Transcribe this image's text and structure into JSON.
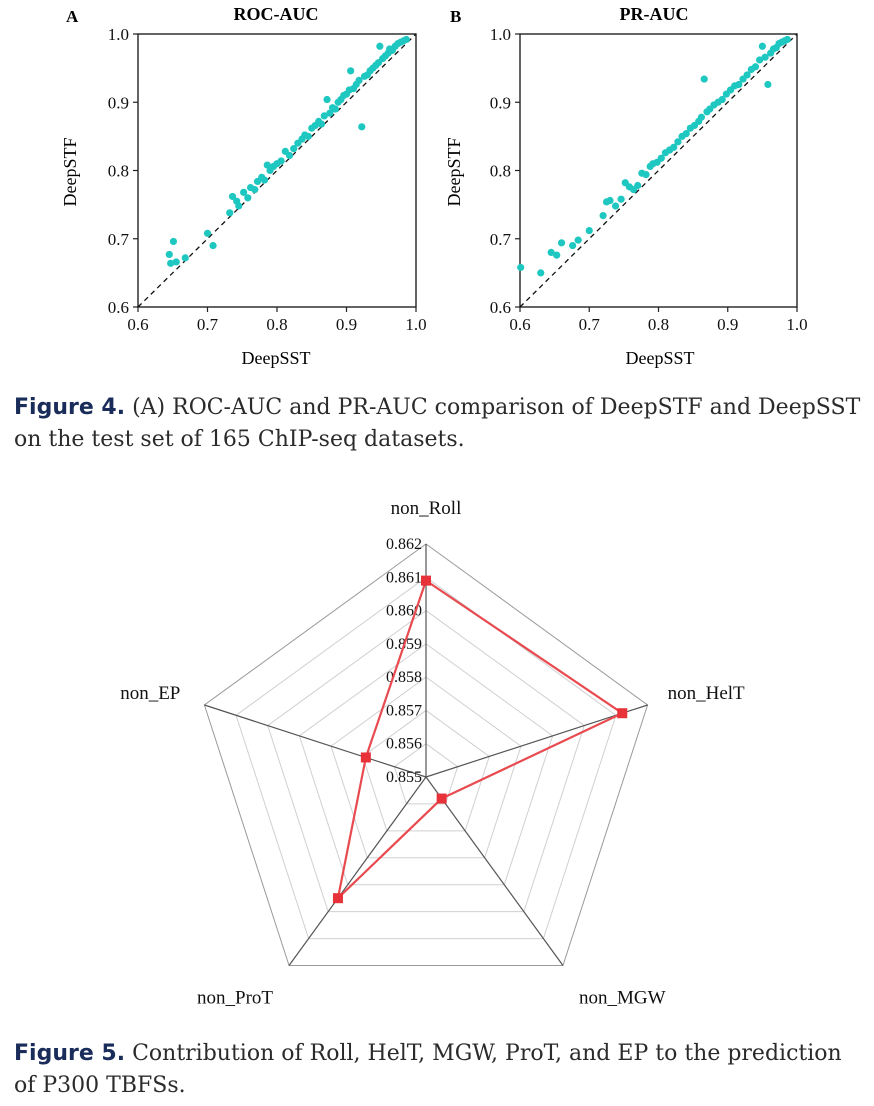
{
  "captions": {
    "fig4_label": "Figure 4.",
    "fig4_text": "(A) ROC-AUC and PR-AUC comparison of DeepSTF and DeepSST on the test set of 165 ChIP-seq datasets.",
    "fig5_label": "Figure 5.",
    "fig5_text": "Contribution of Roll, HelT, MGW, ProT, and EP to the prediction of P300 TBFSs."
  },
  "colors": {
    "scatter_points": "#1fc7c1",
    "radar_line": "#e84a4f",
    "radar_marker": "#e8323a",
    "grid": "#d0d0d0",
    "spoke": "#555555"
  },
  "chart_data": [
    {
      "type": "scatter",
      "panel_label": "A",
      "title": "ROC-AUC",
      "xlabel": "DeepSST",
      "ylabel": "DeepSTF",
      "xlim": [
        0.6,
        1.0
      ],
      "ylim": [
        0.6,
        1.0
      ],
      "xticks": [
        "0.6",
        "0.7",
        "0.8",
        "0.9",
        "1.0"
      ],
      "yticks": [
        "0.6",
        "0.7",
        "0.8",
        "0.9",
        "1.0"
      ],
      "reference_line": "y = x (dashed)",
      "points": [
        [
          0.645,
          0.677
        ],
        [
          0.651,
          0.696
        ],
        [
          0.647,
          0.664
        ],
        [
          0.655,
          0.666
        ],
        [
          0.668,
          0.672
        ],
        [
          0.7,
          0.708
        ],
        [
          0.708,
          0.69
        ],
        [
          0.732,
          0.738
        ],
        [
          0.736,
          0.762
        ],
        [
          0.742,
          0.755
        ],
        [
          0.745,
          0.748
        ],
        [
          0.752,
          0.768
        ],
        [
          0.758,
          0.76
        ],
        [
          0.762,
          0.775
        ],
        [
          0.768,
          0.772
        ],
        [
          0.772,
          0.784
        ],
        [
          0.778,
          0.79
        ],
        [
          0.782,
          0.786
        ],
        [
          0.786,
          0.808
        ],
        [
          0.79,
          0.8
        ],
        [
          0.795,
          0.806
        ],
        [
          0.8,
          0.81
        ],
        [
          0.806,
          0.814
        ],
        [
          0.812,
          0.828
        ],
        [
          0.818,
          0.822
        ],
        [
          0.824,
          0.832
        ],
        [
          0.83,
          0.84
        ],
        [
          0.836,
          0.846
        ],
        [
          0.84,
          0.852
        ],
        [
          0.845,
          0.85
        ],
        [
          0.85,
          0.862
        ],
        [
          0.855,
          0.866
        ],
        [
          0.86,
          0.872
        ],
        [
          0.864,
          0.868
        ],
        [
          0.868,
          0.88
        ],
        [
          0.872,
          0.904
        ],
        [
          0.876,
          0.884
        ],
        [
          0.88,
          0.892
        ],
        [
          0.884,
          0.89
        ],
        [
          0.888,
          0.9
        ],
        [
          0.892,
          0.904
        ],
        [
          0.896,
          0.91
        ],
        [
          0.9,
          0.912
        ],
        [
          0.904,
          0.918
        ],
        [
          0.906,
          0.946
        ],
        [
          0.91,
          0.92
        ],
        [
          0.914,
          0.926
        ],
        [
          0.918,
          0.932
        ],
        [
          0.922,
          0.864
        ],
        [
          0.926,
          0.938
        ],
        [
          0.93,
          0.94
        ],
        [
          0.934,
          0.946
        ],
        [
          0.938,
          0.95
        ],
        [
          0.942,
          0.954
        ],
        [
          0.946,
          0.958
        ],
        [
          0.948,
          0.982
        ],
        [
          0.952,
          0.964
        ],
        [
          0.956,
          0.968
        ],
        [
          0.96,
          0.972
        ],
        [
          0.962,
          0.978
        ],
        [
          0.966,
          0.976
        ],
        [
          0.97,
          0.982
        ],
        [
          0.974,
          0.986
        ],
        [
          0.978,
          0.988
        ],
        [
          0.982,
          0.99
        ],
        [
          0.986,
          0.992
        ]
      ]
    },
    {
      "type": "scatter",
      "panel_label": "B",
      "title": "PR-AUC",
      "xlabel": "DeepSST",
      "ylabel": "DeepSTF",
      "xlim": [
        0.6,
        1.0
      ],
      "ylim": [
        0.6,
        1.0
      ],
      "xticks": [
        "0.6",
        "0.7",
        "0.8",
        "0.9",
        "1.0"
      ],
      "yticks": [
        "0.6",
        "0.7",
        "0.8",
        "0.9",
        "1.0"
      ],
      "reference_line": "y = x (dashed)",
      "points": [
        [
          0.601,
          0.658
        ],
        [
          0.63,
          0.65
        ],
        [
          0.645,
          0.68
        ],
        [
          0.653,
          0.676
        ],
        [
          0.66,
          0.694
        ],
        [
          0.676,
          0.69
        ],
        [
          0.684,
          0.698
        ],
        [
          0.7,
          0.712
        ],
        [
          0.72,
          0.734
        ],
        [
          0.725,
          0.754
        ],
        [
          0.73,
          0.756
        ],
        [
          0.738,
          0.748
        ],
        [
          0.746,
          0.758
        ],
        [
          0.752,
          0.782
        ],
        [
          0.758,
          0.776
        ],
        [
          0.764,
          0.772
        ],
        [
          0.77,
          0.778
        ],
        [
          0.776,
          0.796
        ],
        [
          0.782,
          0.794
        ],
        [
          0.788,
          0.806
        ],
        [
          0.792,
          0.81
        ],
        [
          0.798,
          0.812
        ],
        [
          0.804,
          0.818
        ],
        [
          0.81,
          0.826
        ],
        [
          0.816,
          0.83
        ],
        [
          0.822,
          0.834
        ],
        [
          0.828,
          0.842
        ],
        [
          0.834,
          0.85
        ],
        [
          0.84,
          0.854
        ],
        [
          0.846,
          0.862
        ],
        [
          0.852,
          0.866
        ],
        [
          0.858,
          0.872
        ],
        [
          0.862,
          0.878
        ],
        [
          0.866,
          0.934
        ],
        [
          0.87,
          0.886
        ],
        [
          0.874,
          0.89
        ],
        [
          0.88,
          0.896
        ],
        [
          0.886,
          0.9
        ],
        [
          0.892,
          0.904
        ],
        [
          0.898,
          0.912
        ],
        [
          0.904,
          0.918
        ],
        [
          0.91,
          0.924
        ],
        [
          0.916,
          0.926
        ],
        [
          0.922,
          0.934
        ],
        [
          0.928,
          0.94
        ],
        [
          0.934,
          0.948
        ],
        [
          0.94,
          0.952
        ],
        [
          0.946,
          0.962
        ],
        [
          0.95,
          0.982
        ],
        [
          0.954,
          0.966
        ],
        [
          0.958,
          0.926
        ],
        [
          0.962,
          0.972
        ],
        [
          0.966,
          0.978
        ],
        [
          0.97,
          0.98
        ],
        [
          0.974,
          0.986
        ],
        [
          0.978,
          0.988
        ],
        [
          0.982,
          0.99
        ],
        [
          0.986,
          0.992
        ]
      ]
    },
    {
      "type": "radar",
      "axes": [
        "non_Roll",
        "non_HelT",
        "non_MGW",
        "non_ProT",
        "non_EP"
      ],
      "values": [
        0.8609,
        0.8612,
        0.8558,
        0.8595,
        0.8569
      ],
      "rlim": [
        0.855,
        0.862
      ],
      "rticks": [
        "0.855",
        "0.856",
        "0.857",
        "0.858",
        "0.859",
        "0.860",
        "0.861",
        "0.862"
      ]
    }
  ]
}
